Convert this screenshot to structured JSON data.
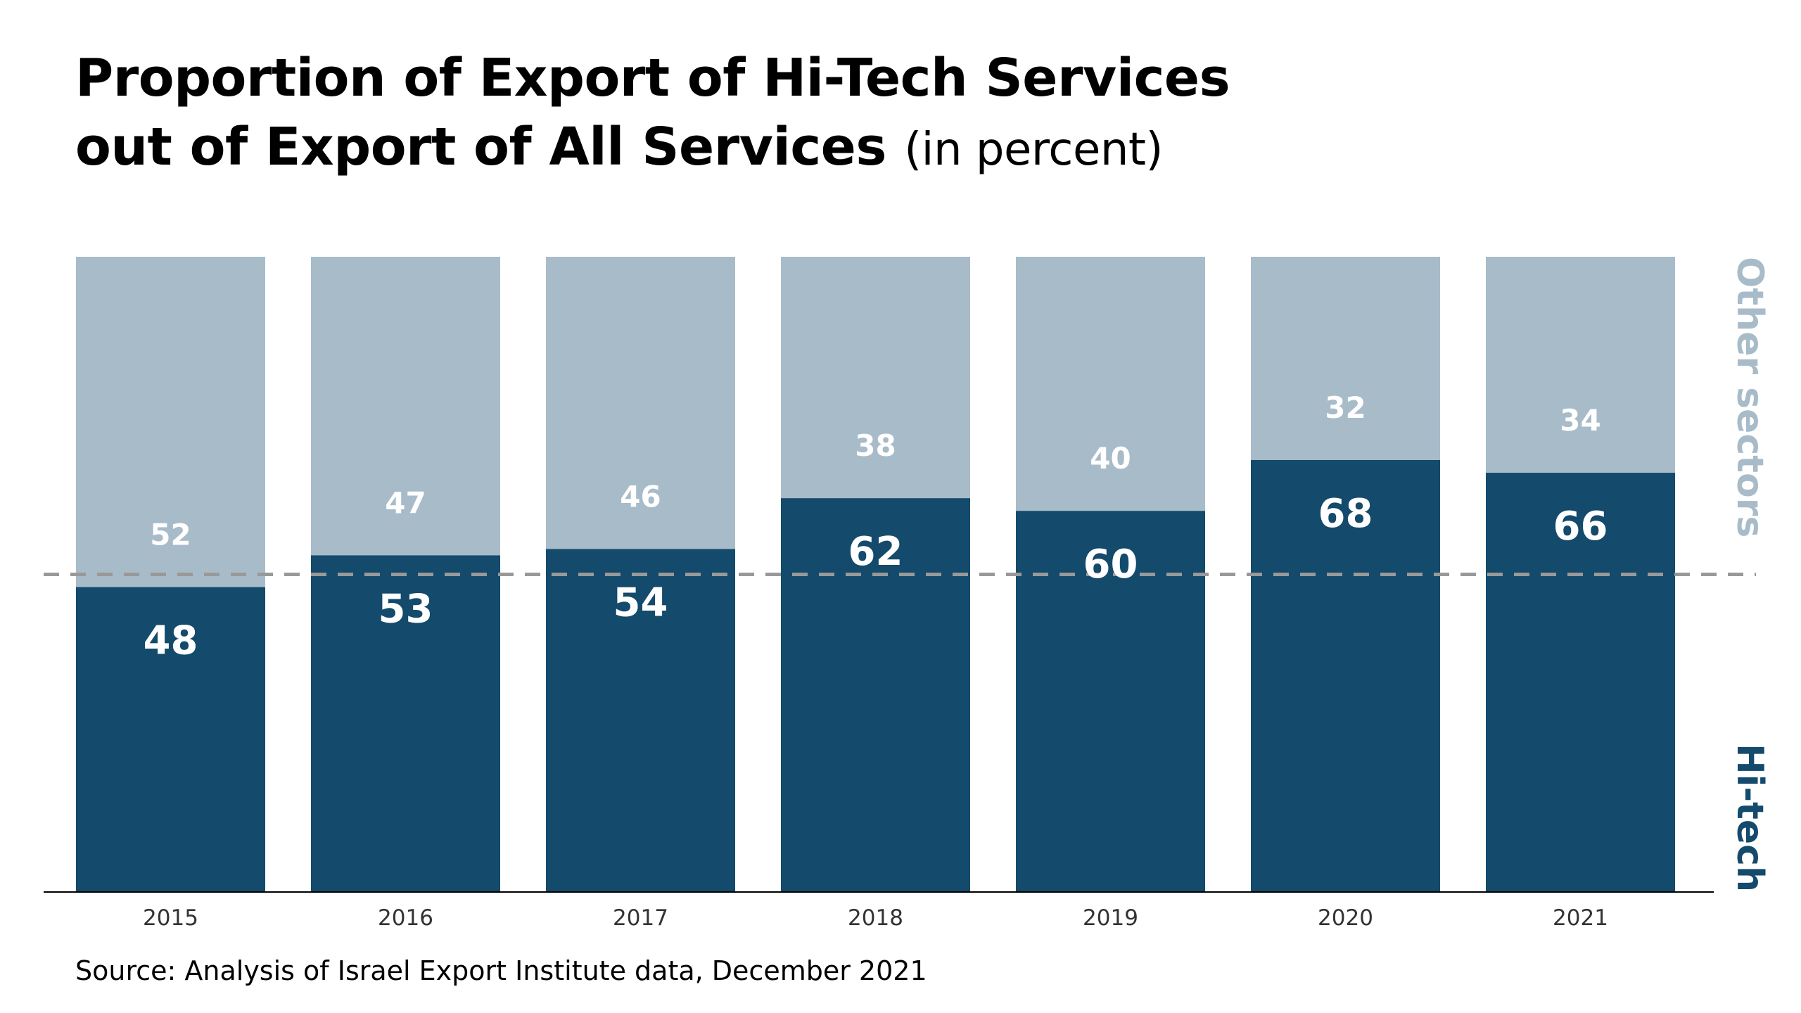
{
  "title": {
    "line1": "Proportion of Export of Hi-Tech Services",
    "line2": "out of Export of All Services",
    "unit": "(in percent)"
  },
  "source": "Source: Analysis of Israel Export Institute data, December 2021",
  "colors": {
    "hitech": "#144a6b",
    "other": "#a8bbc9",
    "reference_line": "#999999",
    "label_text": "#ffffff",
    "axis": "#000000",
    "tick_text": "#333333"
  },
  "chart_data": {
    "type": "bar",
    "stacked": true,
    "categories": [
      "2015",
      "2016",
      "2017",
      "2018",
      "2019",
      "2020",
      "2021"
    ],
    "series": [
      {
        "name": "Hi-tech",
        "values": [
          48,
          53,
          54,
          62,
          60,
          68,
          66
        ]
      },
      {
        "name": "Other sectors",
        "values": [
          52,
          47,
          46,
          38,
          40,
          32,
          34
        ]
      }
    ],
    "ylim": [
      0,
      100
    ],
    "reference_line": 50,
    "data_labels": true,
    "legend": "right",
    "grid": false
  }
}
